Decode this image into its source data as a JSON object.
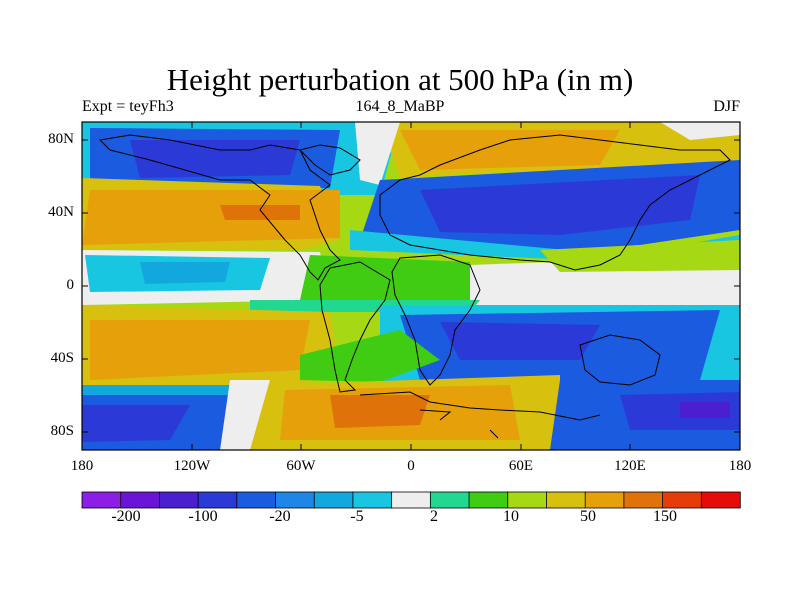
{
  "title": "Height perturbation at 500 hPa (in m)",
  "subtitle_left": "Expt = teyFh3",
  "subtitle_center": "164_8_MaBP",
  "subtitle_right": "DJF",
  "lat_axis": [
    "80N",
    "40N",
    "0",
    "40S",
    "80S"
  ],
  "lon_axis": [
    "180",
    "120W",
    "60W",
    "0",
    "60E",
    "120E",
    "180"
  ],
  "colorbar": {
    "labels": [
      "-200",
      "-100",
      "-20",
      "-5",
      "2",
      "10",
      "50",
      "150"
    ],
    "colors": [
      "#8c1ee6",
      "#6a14d8",
      "#4b1ecf",
      "#2b3ad6",
      "#1a5be0",
      "#1e86e6",
      "#12a8de",
      "#18c6e2",
      "#eeeeee",
      "#20d890",
      "#3fcc12",
      "#a6d914",
      "#d8c00e",
      "#e6a00a",
      "#e0720a",
      "#e63c0a",
      "#e60a0a"
    ]
  },
  "chart_data": {
    "type": "heatmap",
    "title": "Height perturbation at 500 hPa (in m)",
    "experiment": "Expt = teyFh3",
    "period": "164_8_MaBP",
    "season": "DJF",
    "x_range": [
      -180,
      180
    ],
    "y_range": [
      -90,
      90
    ],
    "x_ticks": [
      "180",
      "120W",
      "60W",
      "0",
      "60E",
      "120E",
      "180"
    ],
    "y_ticks": [
      "80N",
      "40N",
      "0",
      "40S",
      "80S"
    ],
    "color_levels": [
      -200,
      -100,
      -20,
      -5,
      2,
      10,
      50,
      150
    ],
    "regions": [
      {
        "lon": -120,
        "lat": 70,
        "value": -100
      },
      {
        "lon": -130,
        "lat": 40,
        "value": 60
      },
      {
        "lon": -95,
        "lat": 40,
        "value": 140
      },
      {
        "lon": 30,
        "lat": 75,
        "value": 60
      },
      {
        "lon": 60,
        "lat": 40,
        "value": -100
      },
      {
        "lon": -140,
        "lat": 10,
        "value": -20
      },
      {
        "lon": -40,
        "lat": 5,
        "value": 10
      },
      {
        "lon": -150,
        "lat": -25,
        "value": 40
      },
      {
        "lon": 40,
        "lat": -30,
        "value": -20
      },
      {
        "lon": -160,
        "lat": -70,
        "value": -100
      },
      {
        "lon": -10,
        "lat": -70,
        "value": 150
      },
      {
        "lon": 150,
        "lat": -70,
        "value": -100
      }
    ]
  }
}
